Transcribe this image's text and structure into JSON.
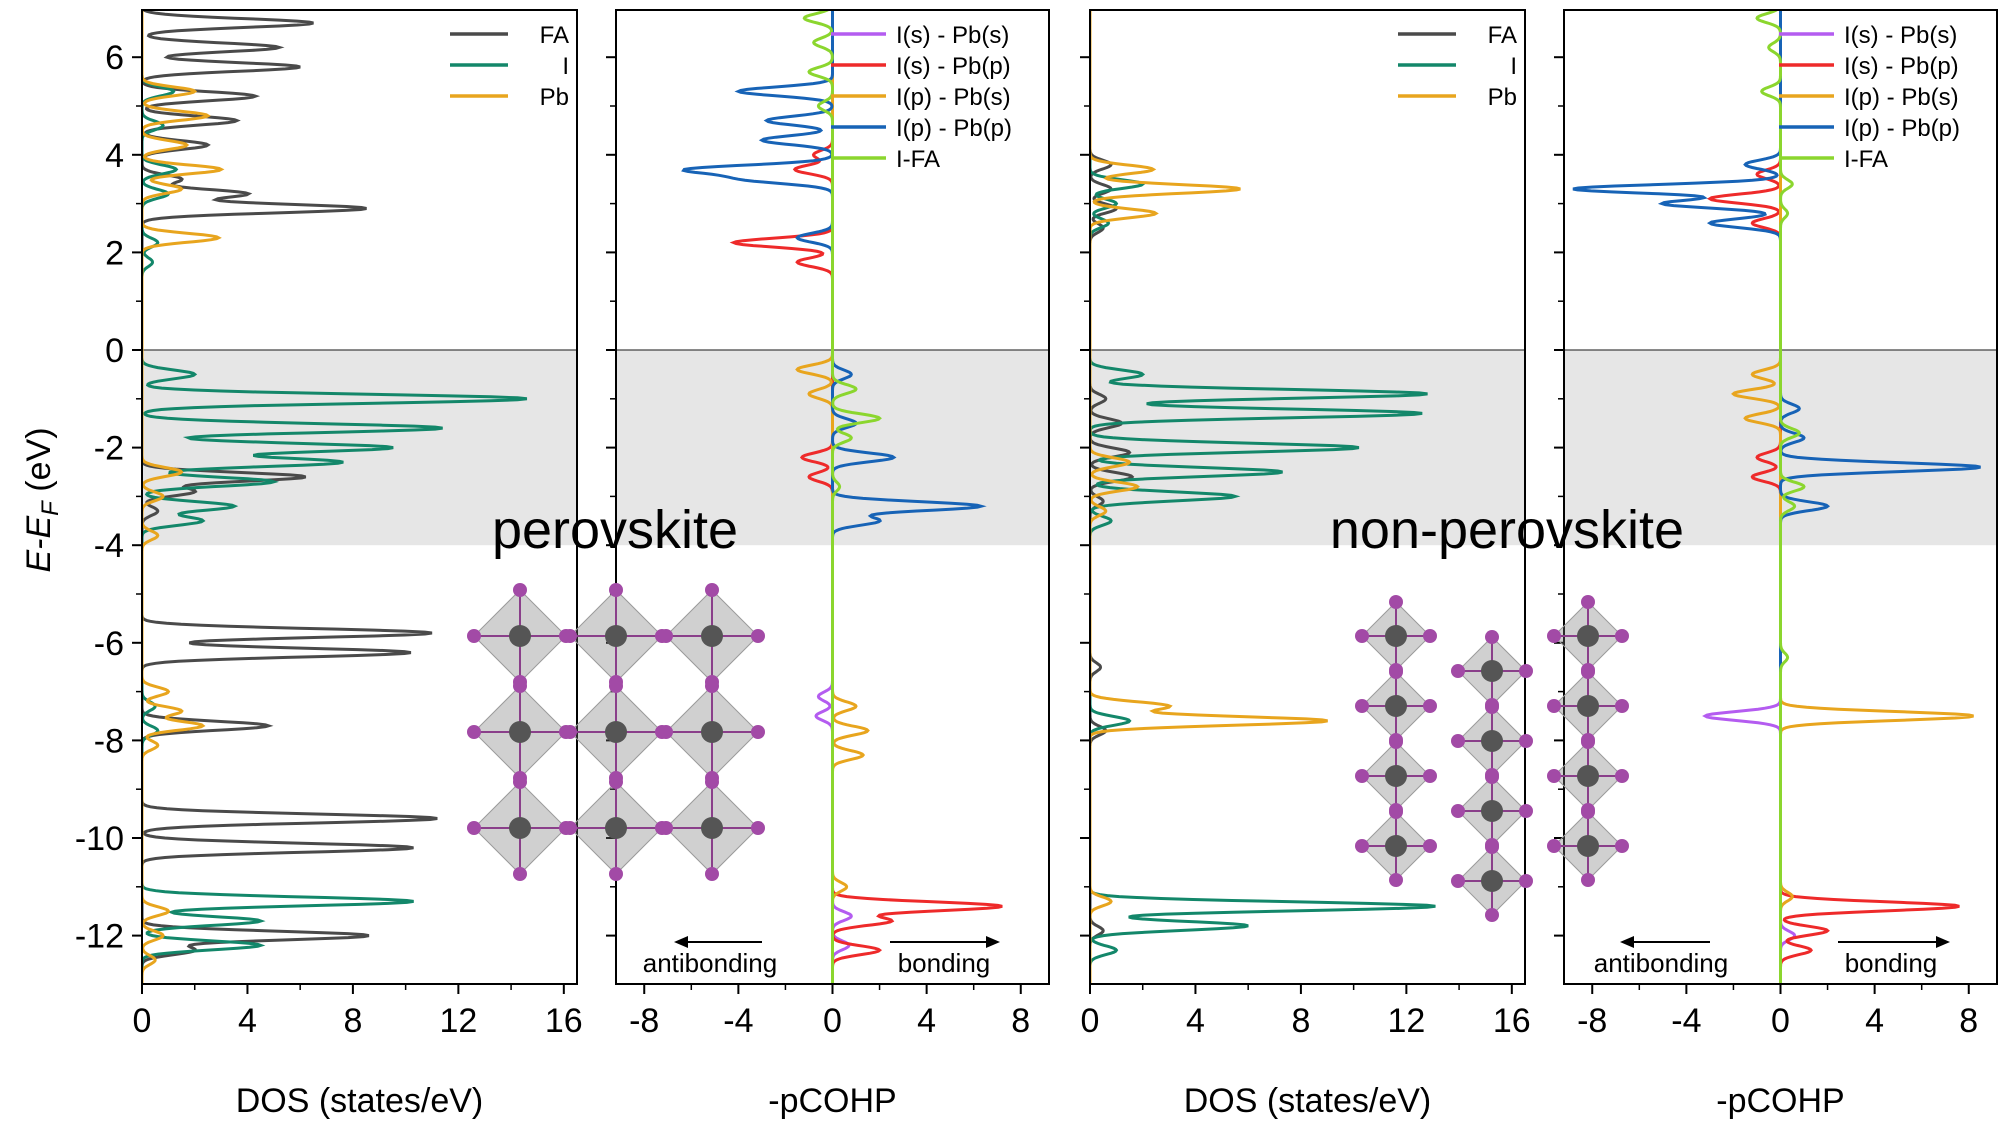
{
  "figure": {
    "y_axis_title": "E-E",
    "y_axis_sub": "F",
    "y_axis_unit": " (eV)",
    "labels": {
      "perovskite": "perovskite",
      "non_perovskite": "non-perovskite",
      "antibonding": "antibonding",
      "bonding": "bonding"
    }
  },
  "colors": {
    "FA": "#4a4a4a",
    "I": "#13876a",
    "Pb": "#e8a51e",
    "I(s) - Pb(s)": "#b45cf0",
    "I(s) - Pb(p)": "#ee2a2a",
    "I(p) - Pb(s)": "#e8a51e",
    "I(p) - Pb(p)": "#1763b6",
    "I-FA": "#8bd62e",
    "shade": "#e6e6e6"
  },
  "chart_data": [
    {
      "type": "line",
      "panel": "perovskite-dos",
      "xlabel": "DOS (states/eV)",
      "ylabel": "E-EF (eV)",
      "xlim": [
        0,
        16.5
      ],
      "ylim": [
        -13,
        7
      ],
      "xticks": [
        0,
        4,
        8,
        12,
        16
      ],
      "yticks": [
        -12,
        -10,
        -8,
        -6,
        -4,
        -2,
        0,
        2,
        4,
        6
      ],
      "shade": [
        -4,
        0
      ],
      "legend": [
        "FA",
        "I",
        "Pb"
      ],
      "series": [
        {
          "name": "FA",
          "peaks": [
            [
              6.7,
              6.5
            ],
            [
              6.2,
              5.2
            ],
            [
              5.8,
              6.0
            ],
            [
              5.2,
              4.3
            ],
            [
              4.7,
              3.6
            ],
            [
              4.2,
              2.5
            ],
            [
              3.5,
              1.5
            ],
            [
              3.2,
              4.0
            ],
            [
              2.9,
              8.5
            ],
            [
              -2.6,
              6.2
            ],
            [
              -2.9,
              2.0
            ],
            [
              -3.3,
              0.6
            ],
            [
              -5.8,
              11.0
            ],
            [
              -6.2,
              10.2
            ],
            [
              -7.7,
              4.8
            ],
            [
              -9.6,
              11.2
            ],
            [
              -10.2,
              10.3
            ],
            [
              -12.0,
              8.6
            ],
            [
              -12.3,
              2.0
            ]
          ]
        },
        {
          "name": "I",
          "peaks": [
            [
              5.3,
              1.2
            ],
            [
              4.6,
              0.8
            ],
            [
              3.7,
              1.3
            ],
            [
              3.2,
              1.0
            ],
            [
              2.2,
              0.6
            ],
            [
              1.8,
              0.4
            ],
            [
              -0.5,
              2.0
            ],
            [
              -1.0,
              14.6
            ],
            [
              -1.6,
              11.4
            ],
            [
              -2.0,
              9.5
            ],
            [
              -2.3,
              7.6
            ],
            [
              -2.7,
              5.0
            ],
            [
              -3.2,
              3.5
            ],
            [
              -3.5,
              2.3
            ],
            [
              -7.3,
              0.5
            ],
            [
              -7.8,
              0.6
            ],
            [
              -11.3,
              10.3
            ],
            [
              -11.7,
              4.5
            ],
            [
              -12.2,
              4.5
            ]
          ]
        },
        {
          "name": "Pb",
          "peaks": [
            [
              5.3,
              2.0
            ],
            [
              4.8,
              2.5
            ],
            [
              4.2,
              1.7
            ],
            [
              3.7,
              3.0
            ],
            [
              3.3,
              1.5
            ],
            [
              2.3,
              2.9
            ],
            [
              -2.5,
              1.5
            ],
            [
              -3.0,
              0.8
            ],
            [
              -3.8,
              0.6
            ],
            [
              -7.0,
              1.0
            ],
            [
              -7.4,
              1.5
            ],
            [
              -7.7,
              2.3
            ],
            [
              -8.1,
              0.6
            ],
            [
              -11.5,
              1.0
            ],
            [
              -12.0,
              0.8
            ],
            [
              -12.5,
              0.5
            ]
          ]
        }
      ]
    },
    {
      "type": "line",
      "panel": "perovskite-cohp",
      "xlabel": "-pCOHP",
      "xlim": [
        -9.2,
        9.2
      ],
      "ylim": [
        -13,
        7
      ],
      "xticks": [
        -8,
        -4,
        0,
        4,
        8
      ],
      "shade": [
        -4,
        0
      ],
      "legend": [
        "I(s) - Pb(s)",
        "I(s) - Pb(p)",
        "I(p) - Pb(s)",
        "I(p) - Pb(p)",
        "I-FA"
      ],
      "series": [
        {
          "name": "I(s) - Pb(s)",
          "peaks": [
            [
              -7.1,
              -0.6
            ],
            [
              -7.5,
              -0.7
            ],
            [
              -11.6,
              0.8
            ],
            [
              -12.2,
              0.7
            ]
          ]
        },
        {
          "name": "I(s) - Pb(p)",
          "peaks": [
            [
              4.0,
              -0.8
            ],
            [
              3.7,
              -1.6
            ],
            [
              2.2,
              -4.2
            ],
            [
              1.8,
              -1.5
            ],
            [
              -2.2,
              -1.3
            ],
            [
              -2.6,
              -1.0
            ],
            [
              -11.4,
              7.2
            ],
            [
              -11.7,
              2.5
            ],
            [
              -12.3,
              2.0
            ]
          ]
        },
        {
          "name": "I(p) - Pb(s)",
          "peaks": [
            [
              -0.4,
              -1.5
            ],
            [
              -0.9,
              -1.0
            ],
            [
              -7.3,
              1.0
            ],
            [
              -7.8,
              1.5
            ],
            [
              -8.3,
              1.3
            ],
            [
              -11.0,
              0.6
            ]
          ]
        },
        {
          "name": "I(p) - Pb(p)",
          "peaks": [
            [
              5.3,
              -4.0
            ],
            [
              4.7,
              -2.8
            ],
            [
              4.3,
              -3.0
            ],
            [
              3.7,
              -6.0
            ],
            [
              3.5,
              -3.5
            ],
            [
              2.3,
              -1.5
            ],
            [
              -0.5,
              0.8
            ],
            [
              -1.5,
              1.0
            ],
            [
              -2.2,
              2.6
            ],
            [
              -3.2,
              6.3
            ],
            [
              -3.5,
              2.0
            ]
          ]
        },
        {
          "name": "I-FA",
          "peaks": [
            [
              6.8,
              -1.2
            ],
            [
              6.3,
              -0.8
            ],
            [
              5.7,
              -1.0
            ],
            [
              5.0,
              -0.6
            ],
            [
              -0.8,
              1.0
            ],
            [
              -1.4,
              2.0
            ],
            [
              -1.8,
              0.8
            ],
            [
              -2.8,
              0.3
            ]
          ]
        }
      ]
    },
    {
      "type": "line",
      "panel": "non-perovskite-dos",
      "xlabel": "DOS (states/eV)",
      "xlim": [
        0,
        16.5
      ],
      "ylim": [
        -13,
        7
      ],
      "xticks": [
        0,
        4,
        8,
        12,
        16
      ],
      "shade": [
        -4,
        0
      ],
      "legend": [
        "FA",
        "I",
        "Pb"
      ],
      "series": [
        {
          "name": "FA",
          "peaks": [
            [
              3.8,
              0.8
            ],
            [
              3.3,
              0.8
            ],
            [
              2.9,
              1.0
            ],
            [
              2.5,
              0.5
            ],
            [
              -1.0,
              0.6
            ],
            [
              -1.5,
              1.2
            ],
            [
              -2.1,
              1.5
            ],
            [
              -2.6,
              1.6
            ],
            [
              -3.1,
              0.5
            ],
            [
              -6.5,
              0.4
            ],
            [
              -7.8,
              0.6
            ],
            [
              -11.9,
              0.5
            ]
          ]
        },
        {
          "name": "I",
          "peaks": [
            [
              3.4,
              2.0
            ],
            [
              3.0,
              1.0
            ],
            [
              2.6,
              0.7
            ],
            [
              -0.5,
              2.0
            ],
            [
              -0.9,
              12.8
            ],
            [
              -1.3,
              12.6
            ],
            [
              -2.0,
              10.2
            ],
            [
              -2.5,
              7.3
            ],
            [
              -3.0,
              5.5
            ],
            [
              -3.5,
              0.8
            ],
            [
              -7.6,
              1.5
            ],
            [
              -11.4,
              13.1
            ],
            [
              -11.8,
              6.0
            ],
            [
              -12.3,
              1.0
            ]
          ]
        },
        {
          "name": "Pb",
          "peaks": [
            [
              3.7,
              2.4
            ],
            [
              3.3,
              5.7
            ],
            [
              2.8,
              2.5
            ],
            [
              -2.3,
              1.5
            ],
            [
              -2.8,
              1.8
            ],
            [
              -3.3,
              0.6
            ],
            [
              -7.3,
              3.0
            ],
            [
              -7.6,
              9.0
            ],
            [
              -11.3,
              0.8
            ]
          ]
        }
      ]
    },
    {
      "type": "line",
      "panel": "non-perovskite-cohp",
      "xlabel": "-pCOHP",
      "xlim": [
        -9.2,
        9.2
      ],
      "ylim": [
        -13,
        7
      ],
      "xticks": [
        -8,
        -4,
        0,
        4,
        8
      ],
      "shade": [
        -4,
        0
      ],
      "legend": [
        "I(s) - Pb(s)",
        "I(s) - Pb(p)",
        "I(p) - Pb(s)",
        "I(p) - Pb(p)",
        "I-FA"
      ],
      "series": [
        {
          "name": "I(s) - Pb(s)",
          "peaks": [
            [
              -7.5,
              -3.2
            ],
            [
              -12.0,
              0.6
            ]
          ]
        },
        {
          "name": "I(s) - Pb(p)",
          "peaks": [
            [
              3.6,
              -1.0
            ],
            [
              3.1,
              -3.0
            ],
            [
              2.6,
              -1.2
            ],
            [
              -2.2,
              -1.0
            ],
            [
              -2.6,
              -1.2
            ],
            [
              -11.4,
              7.6
            ],
            [
              -11.9,
              2.0
            ],
            [
              -12.3,
              1.3
            ]
          ]
        },
        {
          "name": "I(p) - Pb(s)",
          "peaks": [
            [
              -0.5,
              -1.2
            ],
            [
              -0.9,
              -2.0
            ],
            [
              -1.4,
              -1.5
            ],
            [
              -7.5,
              8.2
            ],
            [
              -11.2,
              0.5
            ]
          ]
        },
        {
          "name": "I(p) - Pb(p)",
          "peaks": [
            [
              3.8,
              -1.5
            ],
            [
              3.3,
              -8.8
            ],
            [
              3.0,
              -5.0
            ],
            [
              2.6,
              -3.0
            ],
            [
              -1.2,
              0.8
            ],
            [
              -1.8,
              1.0
            ],
            [
              -2.4,
              8.5
            ],
            [
              -3.2,
              2.0
            ]
          ]
        },
        {
          "name": "I-FA",
          "peaks": [
            [
              6.8,
              -1.0
            ],
            [
              6.2,
              -0.5
            ],
            [
              5.3,
              -0.8
            ],
            [
              3.4,
              0.5
            ],
            [
              2.8,
              0.3
            ],
            [
              -1.7,
              0.8
            ],
            [
              -2.8,
              1.0
            ],
            [
              -3.2,
              0.6
            ],
            [
              -6.3,
              0.3
            ]
          ]
        }
      ]
    }
  ]
}
